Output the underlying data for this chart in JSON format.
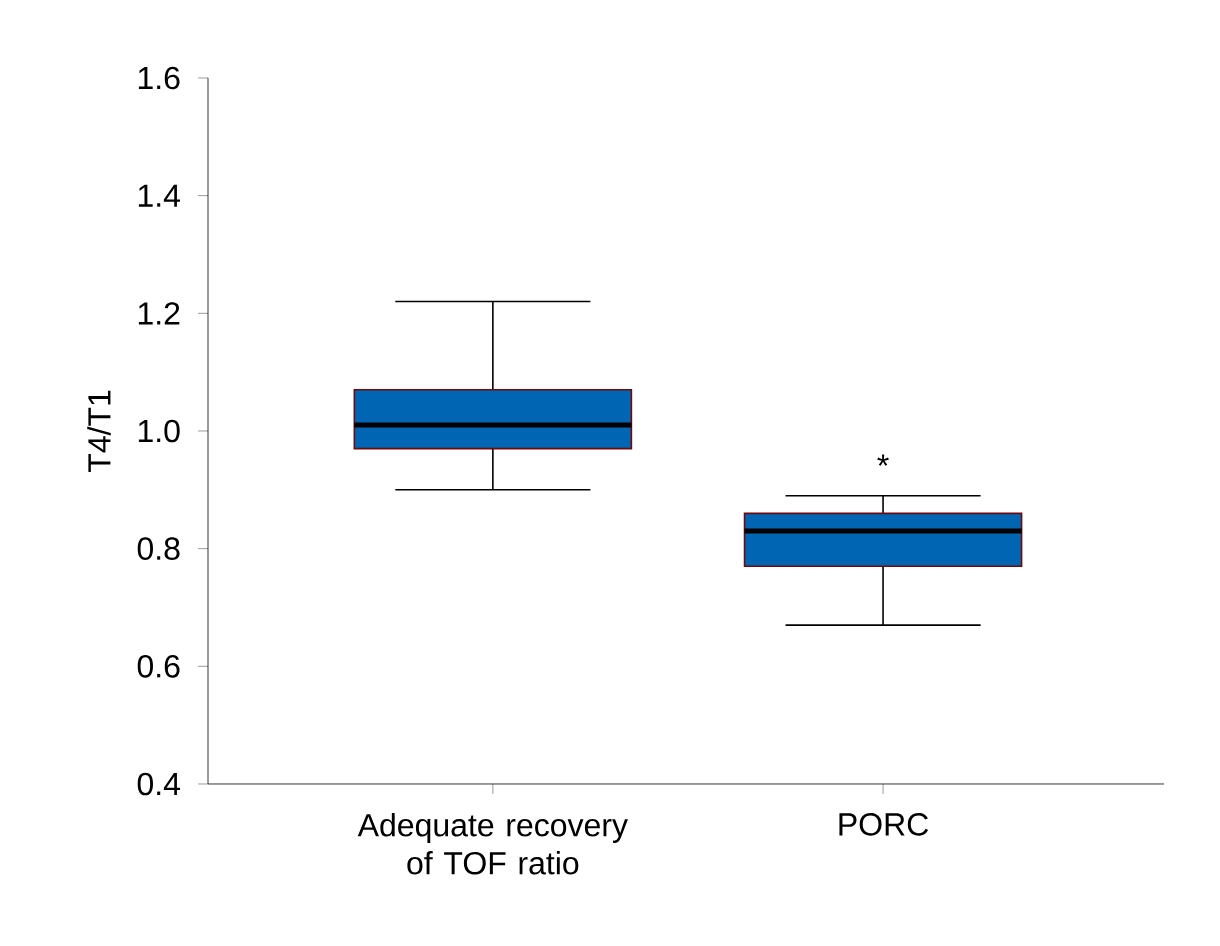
{
  "chart_data": {
    "type": "box",
    "ylabel": "T4/T1",
    "categories": [
      "Adequate recovery of TOF ratio",
      "PORC"
    ],
    "series": [
      {
        "color": "#0066b3",
        "boxes": [
          {
            "low": 0.9,
            "q1": 0.97,
            "median": 1.01,
            "q3": 1.07,
            "high": 1.22
          },
          {
            "low": 0.67,
            "q1": 0.77,
            "median": 0.83,
            "q3": 0.86,
            "high": 0.89
          }
        ]
      }
    ],
    "ylim": [
      0.4,
      1.6
    ],
    "yticks": [
      {
        "value": 0.4,
        "label": "0.4"
      },
      {
        "value": 0.6,
        "label": "0.6"
      },
      {
        "value": 0.8,
        "label": "0.8"
      },
      {
        "value": 1.0,
        "label": "1.0"
      },
      {
        "value": 1.2,
        "label": "1.2"
      },
      {
        "value": 1.4,
        "label": "1.4"
      },
      {
        "value": 1.6,
        "label": "1.6"
      }
    ],
    "annotations": [
      "*"
    ],
    "grid": false
  }
}
